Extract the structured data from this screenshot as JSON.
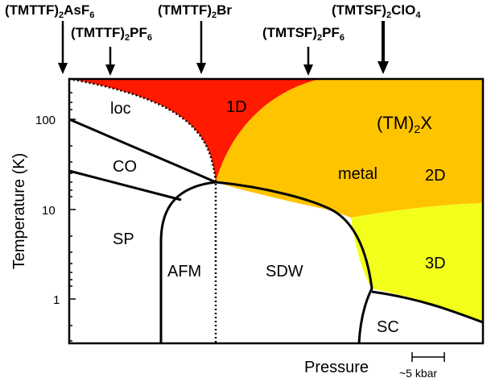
{
  "materials": [
    {
      "base": "(TMTTF)",
      "sub": "2",
      "tail": "AsF",
      "sub2": "6"
    },
    {
      "base": "(TMTTF)",
      "sub": "2",
      "tail": "PF",
      "sub2": "6"
    },
    {
      "base": "(TMTTF)",
      "sub": "2",
      "tail": "Br",
      "sub2": ""
    },
    {
      "base": "(TMTSF)",
      "sub": "2",
      "tail": "PF",
      "sub2": "6"
    },
    {
      "base": "(TMTSF)",
      "sub": "2",
      "tail": "ClO",
      "sub2": "4"
    }
  ],
  "phases": {
    "loc": "loc",
    "one_d": "1D",
    "tmx_base": "(TM)",
    "tmx_sub": "2",
    "tmx_tail": "X",
    "co": "CO",
    "metal": "metal",
    "two_d": "2D",
    "sp": "SP",
    "afm": "AFM",
    "sdw": "SDW",
    "three_d": "3D",
    "sc": "SC"
  },
  "axes": {
    "ylabel": "Temperature (K)",
    "xlabel": "Pressure",
    "y_ticks": [
      "100",
      "10",
      "1"
    ],
    "y_scale": "log",
    "scale_bar": "~5 kbar"
  },
  "colors": {
    "one_d": "#ff1a00",
    "metal_2d": "#ffc400",
    "three_d": "#f2ff1a",
    "lines": "#000000"
  }
}
